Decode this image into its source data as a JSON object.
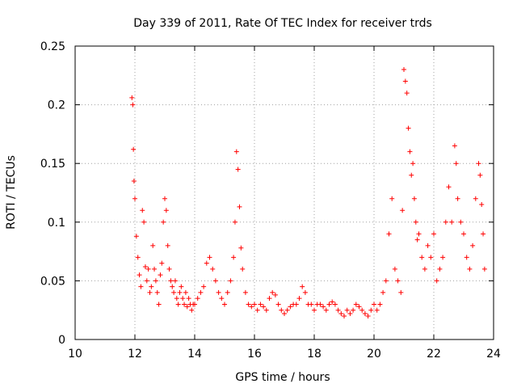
{
  "chart_data": {
    "type": "scatter",
    "title": "Day 339 of 2011, Rate Of TEC Index for receiver trds",
    "xlabel": "GPS time / hours",
    "ylabel": "ROTI / TECUs",
    "xlim": [
      10,
      24
    ],
    "ylim": [
      0,
      0.25
    ],
    "xticks": [
      "10",
      "12",
      "14",
      "16",
      "18",
      "20",
      "22",
      "24"
    ],
    "yticks": [
      "0",
      "0.05",
      "0.1",
      "0.15",
      "0.2",
      "0.25"
    ],
    "grid": true,
    "marker": "+",
    "color": "#ff0000",
    "series": [
      {
        "x": [
          11.9,
          11.93,
          11.95,
          11.97,
          12.0,
          12.05,
          12.1,
          12.15,
          12.2,
          12.25,
          12.3,
          12.35,
          12.4,
          12.45,
          12.5,
          12.55,
          12.6,
          12.65,
          12.7,
          12.75,
          12.8,
          12.85,
          12.9,
          12.95,
          13.0,
          13.05,
          13.1,
          13.15,
          13.2,
          13.25,
          13.3,
          13.35,
          13.4,
          13.45,
          13.5,
          13.55,
          13.6,
          13.65,
          13.7,
          13.75,
          13.8,
          13.85,
          13.9,
          13.95,
          14.0,
          14.1,
          14.2,
          14.3,
          14.4,
          14.5,
          14.6,
          14.7,
          14.8,
          14.9,
          15.0,
          15.1,
          15.2,
          15.3,
          15.35,
          15.4,
          15.45,
          15.5,
          15.55,
          15.6,
          15.7,
          15.8,
          15.9,
          16.0,
          16.1,
          16.2,
          16.3,
          16.4,
          16.5,
          16.6,
          16.7,
          16.8,
          16.9,
          17.0,
          17.1,
          17.2,
          17.3,
          17.4,
          17.5,
          17.6,
          17.7,
          17.8,
          17.9,
          18.0,
          18.1,
          18.2,
          18.3,
          18.4,
          18.5,
          18.6,
          18.7,
          18.8,
          18.9,
          19.0,
          19.1,
          19.2,
          19.3,
          19.4,
          19.5,
          19.6,
          19.7,
          19.8,
          19.9,
          20.0,
          20.1,
          20.2,
          20.3,
          20.4,
          20.5,
          20.6,
          20.7,
          20.8,
          20.9,
          20.95,
          21.0,
          21.05,
          21.1,
          21.15,
          21.2,
          21.25,
          21.3,
          21.35,
          21.4,
          21.45,
          21.5,
          21.6,
          21.7,
          21.8,
          21.9,
          22.0,
          22.1,
          22.2,
          22.3,
          22.4,
          22.5,
          22.6,
          22.7,
          22.75,
          22.8,
          22.9,
          23.0,
          23.1,
          23.2,
          23.3,
          23.4,
          23.5,
          23.55,
          23.6,
          23.65,
          23.7
        ],
        "y": [
          0.206,
          0.2,
          0.162,
          0.135,
          0.12,
          0.088,
          0.07,
          0.055,
          0.045,
          0.11,
          0.1,
          0.062,
          0.05,
          0.06,
          0.04,
          0.045,
          0.08,
          0.06,
          0.05,
          0.04,
          0.03,
          0.055,
          0.065,
          0.1,
          0.12,
          0.11,
          0.08,
          0.06,
          0.05,
          0.045,
          0.04,
          0.05,
          0.035,
          0.03,
          0.04,
          0.045,
          0.035,
          0.03,
          0.04,
          0.028,
          0.035,
          0.03,
          0.025,
          0.03,
          0.03,
          0.035,
          0.04,
          0.045,
          0.065,
          0.07,
          0.06,
          0.05,
          0.04,
          0.035,
          0.03,
          0.04,
          0.05,
          0.07,
          0.1,
          0.16,
          0.145,
          0.113,
          0.078,
          0.06,
          0.04,
          0.03,
          0.028,
          0.03,
          0.025,
          0.03,
          0.028,
          0.025,
          0.035,
          0.04,
          0.038,
          0.03,
          0.025,
          0.022,
          0.025,
          0.028,
          0.03,
          0.03,
          0.035,
          0.045,
          0.04,
          0.03,
          0.03,
          0.025,
          0.03,
          0.03,
          0.028,
          0.025,
          0.03,
          0.032,
          0.03,
          0.025,
          0.022,
          0.02,
          0.025,
          0.022,
          0.025,
          0.03,
          0.028,
          0.025,
          0.022,
          0.02,
          0.025,
          0.03,
          0.025,
          0.03,
          0.04,
          0.05,
          0.09,
          0.12,
          0.06,
          0.05,
          0.04,
          0.11,
          0.23,
          0.22,
          0.21,
          0.18,
          0.16,
          0.14,
          0.15,
          0.12,
          0.1,
          0.085,
          0.09,
          0.07,
          0.06,
          0.08,
          0.07,
          0.09,
          0.05,
          0.06,
          0.07,
          0.1,
          0.13,
          0.1,
          0.165,
          0.15,
          0.12,
          0.1,
          0.09,
          0.07,
          0.06,
          0.08,
          0.12,
          0.15,
          0.14,
          0.115,
          0.09,
          0.06
        ]
      }
    ]
  }
}
